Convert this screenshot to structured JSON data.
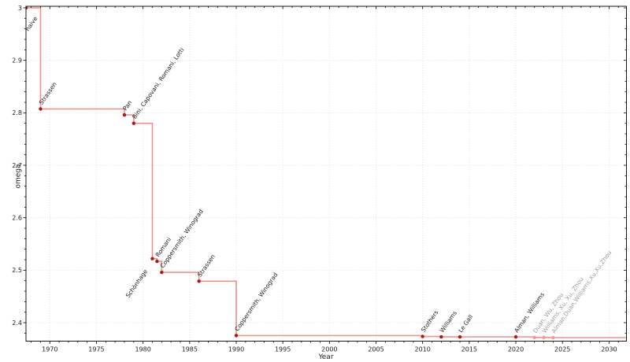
{
  "chart_data": {
    "type": "line",
    "subtype": "step-post",
    "title": "",
    "xlabel": "Year",
    "ylabel": "omega",
    "grid": true,
    "legend": "none",
    "x_axis": {
      "min": 1967.44,
      "max": 2031.87,
      "major_ticks": [
        1970,
        1975,
        1980,
        1985,
        1990,
        1995,
        2000,
        2005,
        2010,
        2015,
        2020,
        2025,
        2030
      ],
      "tick_labels": [
        "1970",
        "1975",
        "1980",
        "1985",
        "1990",
        "1995",
        "2000",
        "2005",
        "2010",
        "2015",
        "2020",
        "2025",
        "2030"
      ],
      "minor_step": 1
    },
    "y_axis": {
      "min": 2.3648,
      "max": 3.003,
      "major_ticks": [
        2.4,
        2.5,
        2.6,
        2.7,
        2.8,
        2.9,
        3.0
      ],
      "tick_labels": [
        "2.4",
        "2.5",
        "2.6",
        "2.7",
        "2.8",
        "2.9",
        "3"
      ],
      "minor_step": 0.02
    },
    "colors": {
      "line": "#e2382c",
      "marker_established": "#b41612",
      "marker_tentative": "#f19a93",
      "label_established": "#1c1c1c",
      "label_tentative": "#9c9c9c",
      "grid": "#dfdfdf",
      "axis": "#000000",
      "tick_label": "#1c1c1c"
    },
    "points": [
      {
        "year": 1967.44,
        "omega": 3.0,
        "label": "naive",
        "status": "established",
        "label_placement": "below-start"
      },
      {
        "year": 1969,
        "omega": 2.8074,
        "label": "Strassen",
        "status": "established",
        "label_placement": "above"
      },
      {
        "year": 1978,
        "omega": 2.796,
        "label": "Pan",
        "status": "established",
        "label_placement": "above"
      },
      {
        "year": 1979,
        "omega": 2.78,
        "label": "Bini, Capovani, Romani, Lotti",
        "status": "established",
        "label_placement": "above"
      },
      {
        "year": 1981,
        "omega": 2.522,
        "label": "Schönhage",
        "status": "established",
        "label_placement": "below-left"
      },
      {
        "year": 1981.5,
        "omega": 2.517,
        "label": "Romani",
        "status": "established",
        "label_placement": "above"
      },
      {
        "year": 1982,
        "omega": 2.496,
        "label": "Coppersmith, Winograd",
        "status": "established",
        "label_placement": "above"
      },
      {
        "year": 1986,
        "omega": 2.479,
        "label": "Strassen",
        "status": "established",
        "label_placement": "above"
      },
      {
        "year": 1990,
        "omega": 2.3755,
        "label": "Coppersmith, Winograd",
        "status": "established",
        "label_placement": "above"
      },
      {
        "year": 2010,
        "omega": 2.3737,
        "label": "Stothers",
        "status": "established",
        "label_placement": "above"
      },
      {
        "year": 2012,
        "omega": 2.3729,
        "label": "Williams",
        "status": "established",
        "label_placement": "above"
      },
      {
        "year": 2014,
        "omega": 2.3728639,
        "label": "Le Gall",
        "status": "established",
        "label_placement": "above"
      },
      {
        "year": 2020,
        "omega": 2.3728596,
        "label": "Alman, Williams",
        "status": "established",
        "label_placement": "above"
      },
      {
        "year": 2022,
        "omega": 2.37188,
        "label": "Duan, Wu, Zhou",
        "status": "tentative",
        "label_placement": "above"
      },
      {
        "year": 2023,
        "omega": 2.371866,
        "label": "Williams, Xu, Xu, Zhou",
        "status": "tentative",
        "label_placement": "above"
      },
      {
        "year": 2024,
        "omega": 2.371552,
        "label": "Alman,Duan,Williams,Xu,Xu,Zhou",
        "status": "tentative",
        "label_placement": "above"
      }
    ]
  }
}
